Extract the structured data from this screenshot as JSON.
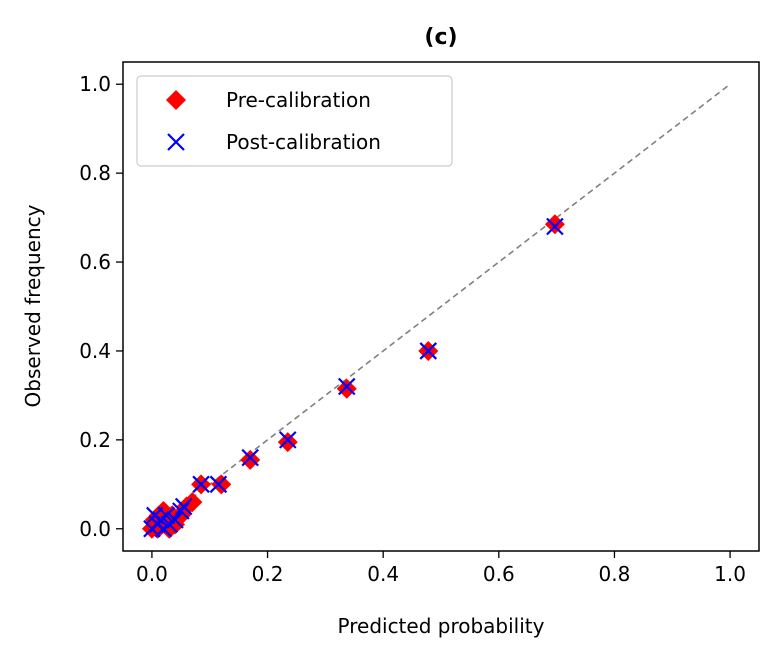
{
  "chart_data": {
    "type": "scatter",
    "title": "(c)",
    "xlabel": "Predicted probability",
    "ylabel": "Observed frequency",
    "xlim": [
      -0.05,
      1.05
    ],
    "ylim": [
      -0.05,
      1.05
    ],
    "xticks": [
      0.0,
      0.2,
      0.4,
      0.6,
      0.8,
      1.0
    ],
    "yticks": [
      0.0,
      0.2,
      0.4,
      0.6,
      0.8,
      1.0
    ],
    "xtick_labels": [
      "0.0",
      "0.2",
      "0.4",
      "0.6",
      "0.8",
      "1.0"
    ],
    "ytick_labels": [
      "0.0",
      "0.2",
      "0.4",
      "0.6",
      "0.8",
      "1.0"
    ],
    "grid": false,
    "legend_position": "top-left",
    "reference_line": {
      "x": [
        0,
        1
      ],
      "y": [
        0,
        1
      ],
      "color": "#808080",
      "style": "dashed"
    },
    "series": [
      {
        "name": "Pre-calibration",
        "marker": "diamond",
        "color": "#ff0000",
        "x": [
          0.0,
          0.005,
          0.01,
          0.012,
          0.015,
          0.02,
          0.025,
          0.03,
          0.035,
          0.04,
          0.05,
          0.06,
          0.07,
          0.085,
          0.12,
          0.17,
          0.235,
          0.337,
          0.478,
          0.697
        ],
        "y": [
          0.0,
          0.02,
          0.0,
          0.03,
          0.01,
          0.04,
          0.02,
          0.0,
          0.03,
          0.01,
          0.03,
          0.05,
          0.06,
          0.1,
          0.1,
          0.155,
          0.195,
          0.315,
          0.4,
          0.685
        ]
      },
      {
        "name": "Post-calibration",
        "marker": "x",
        "color": "#0000ff",
        "x": [
          0.0,
          0.005,
          0.01,
          0.015,
          0.02,
          0.025,
          0.03,
          0.04,
          0.05,
          0.055,
          0.085,
          0.115,
          0.17,
          0.235,
          0.337,
          0.478,
          0.697
        ],
        "y": [
          0.0,
          0.03,
          0.01,
          0.02,
          0.0,
          0.03,
          0.01,
          0.02,
          0.04,
          0.05,
          0.1,
          0.1,
          0.16,
          0.2,
          0.32,
          0.4,
          0.68
        ]
      }
    ]
  }
}
